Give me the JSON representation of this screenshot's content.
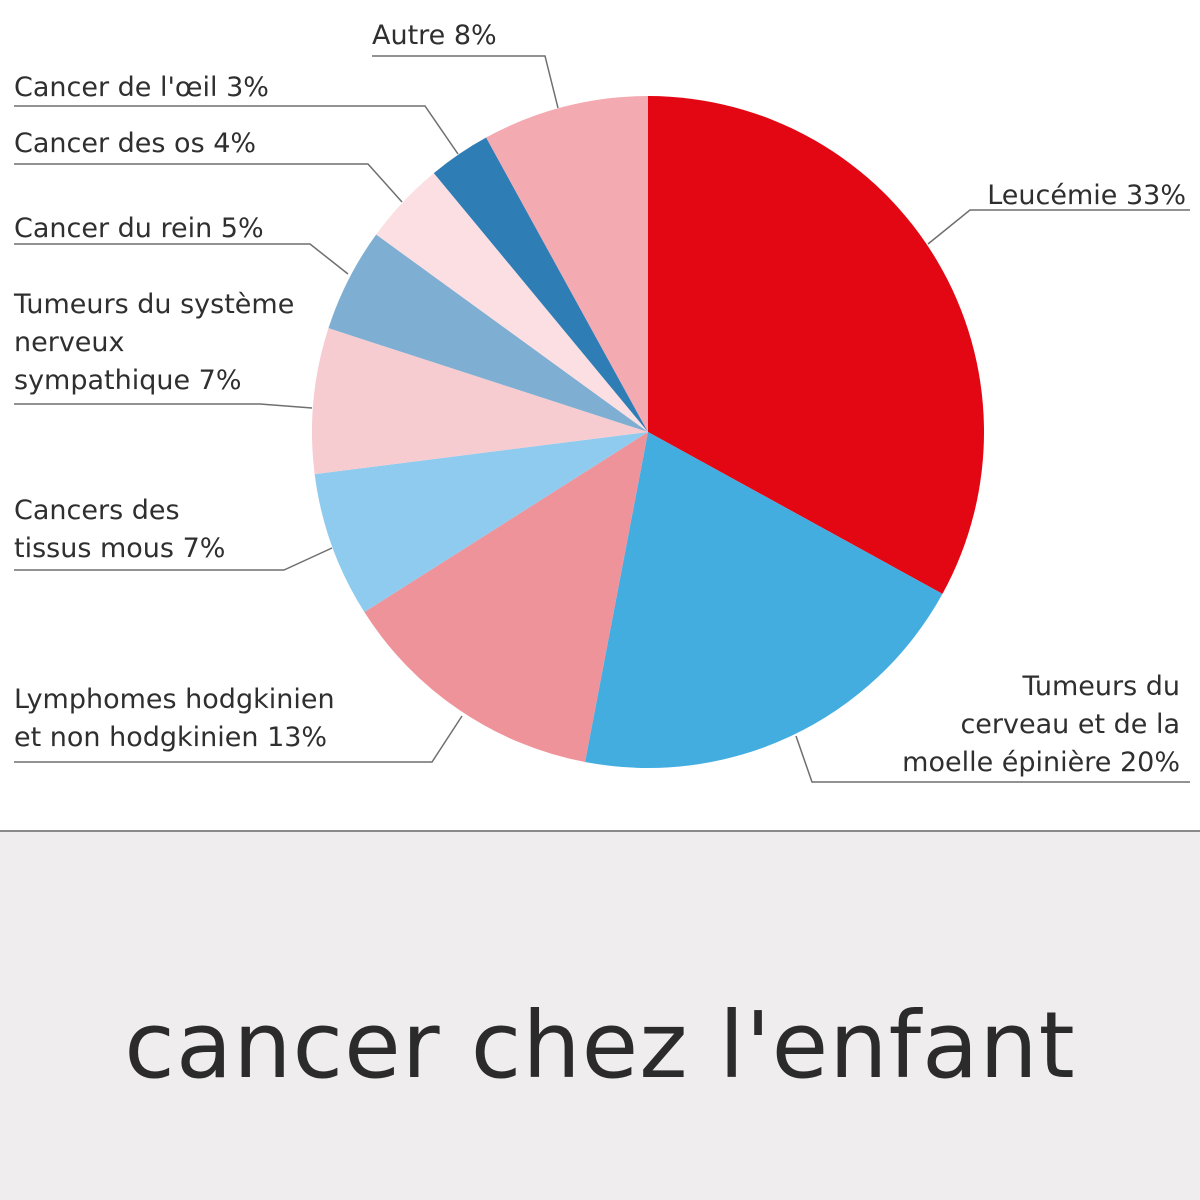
{
  "caption": "cancer chez l'enfant",
  "chart_data": {
    "type": "pie",
    "start_angle_deg": 0,
    "direction": "clockwise",
    "slices": [
      {
        "label": "Leucémie 33%",
        "lines": [
          "Leucémie 33%"
        ],
        "value": 33,
        "color": "#e30613"
      },
      {
        "label": "Tumeurs du cerveau et de la moelle épinière 20%",
        "lines": [
          "Tumeurs du",
          "cerveau et de la",
          "moelle épinière 20%"
        ],
        "value": 20,
        "color": "#43ade0"
      },
      {
        "label": "Lymphomes hodgkinien et non hodgkinien 13%",
        "lines": [
          "Lymphomes hodgkinien",
          "et non hodgkinien 13%"
        ],
        "value": 13,
        "color": "#ef939b"
      },
      {
        "label": "Cancers des tissus mous 7%",
        "lines": [
          "Cancers des",
          "tissus mous 7%"
        ],
        "value": 7,
        "color": "#8fcbee"
      },
      {
        "label": "Tumeurs du système nerveux sympathique 7%",
        "lines": [
          "Tumeurs du système",
          "nerveux",
          "sympathique 7%"
        ],
        "value": 7,
        "color": "#f7ccd0"
      },
      {
        "label": "Cancer du rein 5%",
        "lines": [
          "Cancer du rein 5%"
        ],
        "value": 5,
        "color": "#7eafd3"
      },
      {
        "label": "Cancer des os 4%",
        "lines": [
          "Cancer des os 4%"
        ],
        "value": 4,
        "color": "#fbdfe2"
      },
      {
        "label": "Cancer de l'œil 3%",
        "lines": [
          "Cancer de l'œil 3%"
        ],
        "value": 3,
        "color": "#2f7db5"
      },
      {
        "label": "Autre 8%",
        "lines": [
          "Autre 8%"
        ],
        "value": 8,
        "color": "#f3aab1"
      }
    ]
  }
}
